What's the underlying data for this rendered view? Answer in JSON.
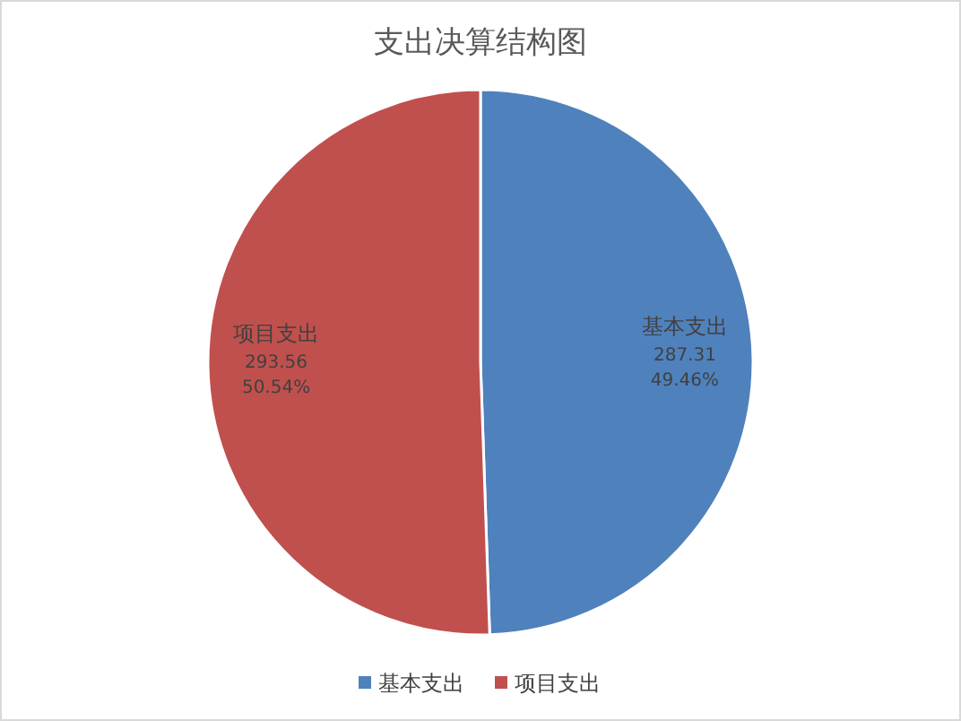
{
  "chart_data": {
    "type": "pie",
    "title": "支出决算结构图",
    "categories": [
      "基本支出",
      "项目支出"
    ],
    "values": [
      287.31,
      293.56
    ],
    "colors": [
      "#4f81bd",
      "#c0504d"
    ],
    "value_labels": [
      "287.31\n49.46%",
      "293.56\n50.54%"
    ],
    "legend": "bottom"
  }
}
